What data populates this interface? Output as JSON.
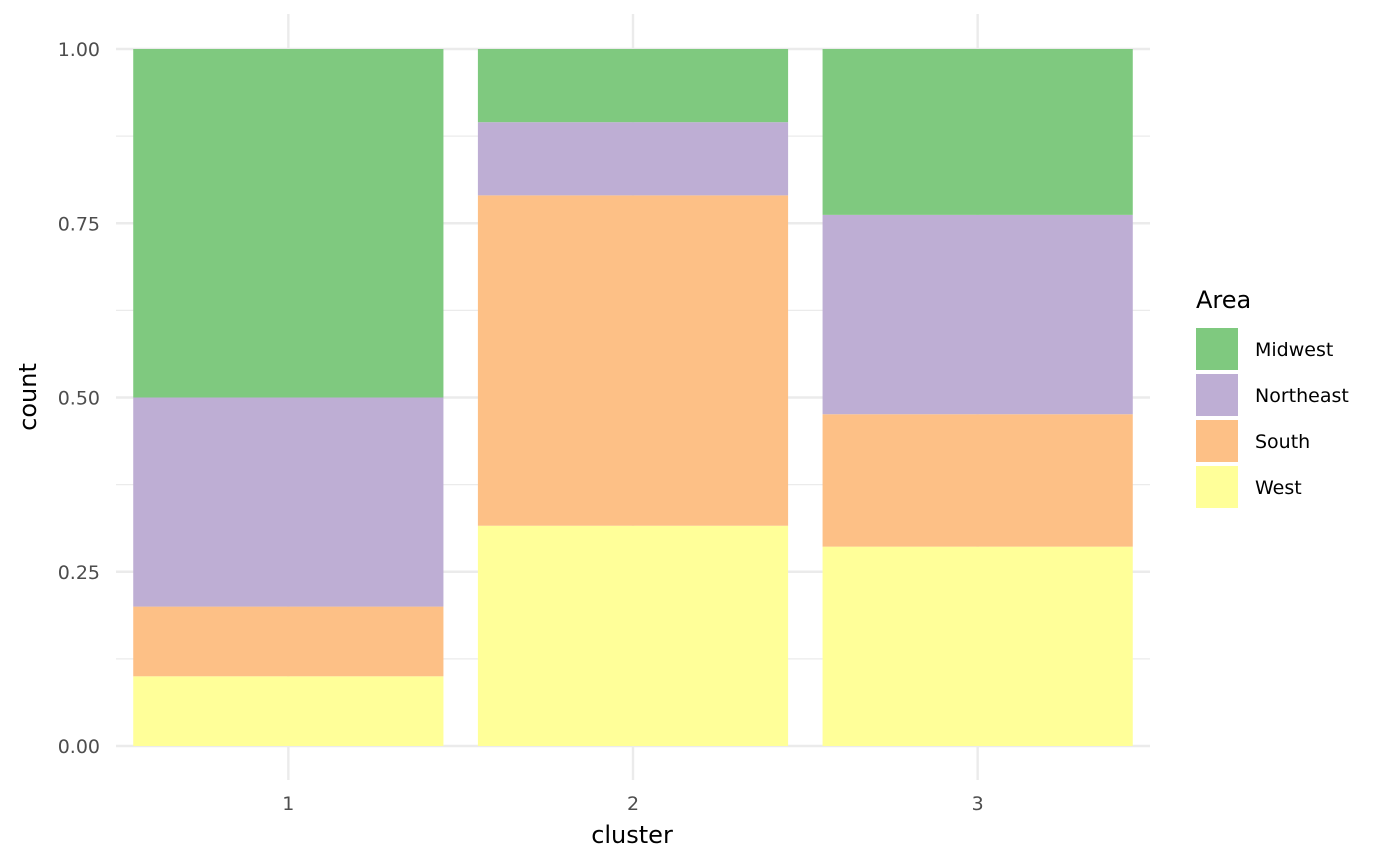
{
  "chart_data": {
    "type": "bar",
    "stacked": true,
    "categories": [
      "1",
      "2",
      "3"
    ],
    "series": [
      {
        "name": "West",
        "color": "#FFFF99",
        "values": [
          0.1,
          0.316,
          0.286
        ]
      },
      {
        "name": "South",
        "color": "#FDC086",
        "values": [
          0.1,
          0.474,
          0.19
        ]
      },
      {
        "name": "Northeast",
        "color": "#BEAED4",
        "values": [
          0.3,
          0.105,
          0.286
        ]
      },
      {
        "name": "Midwest",
        "color": "#7FC97F",
        "values": [
          0.5,
          0.105,
          0.238
        ]
      }
    ],
    "xlabel": "cluster",
    "ylabel": "count",
    "ylim": [
      0,
      1
    ],
    "yticks": [
      "0.00",
      "0.25",
      "0.50",
      "0.75",
      "1.00"
    ],
    "ytick_values": [
      0,
      0.25,
      0.5,
      0.75,
      1.0
    ],
    "grid": true,
    "legend": {
      "title": "Area",
      "position": "right",
      "entries": [
        "Midwest",
        "Northeast",
        "South",
        "West"
      ]
    }
  }
}
